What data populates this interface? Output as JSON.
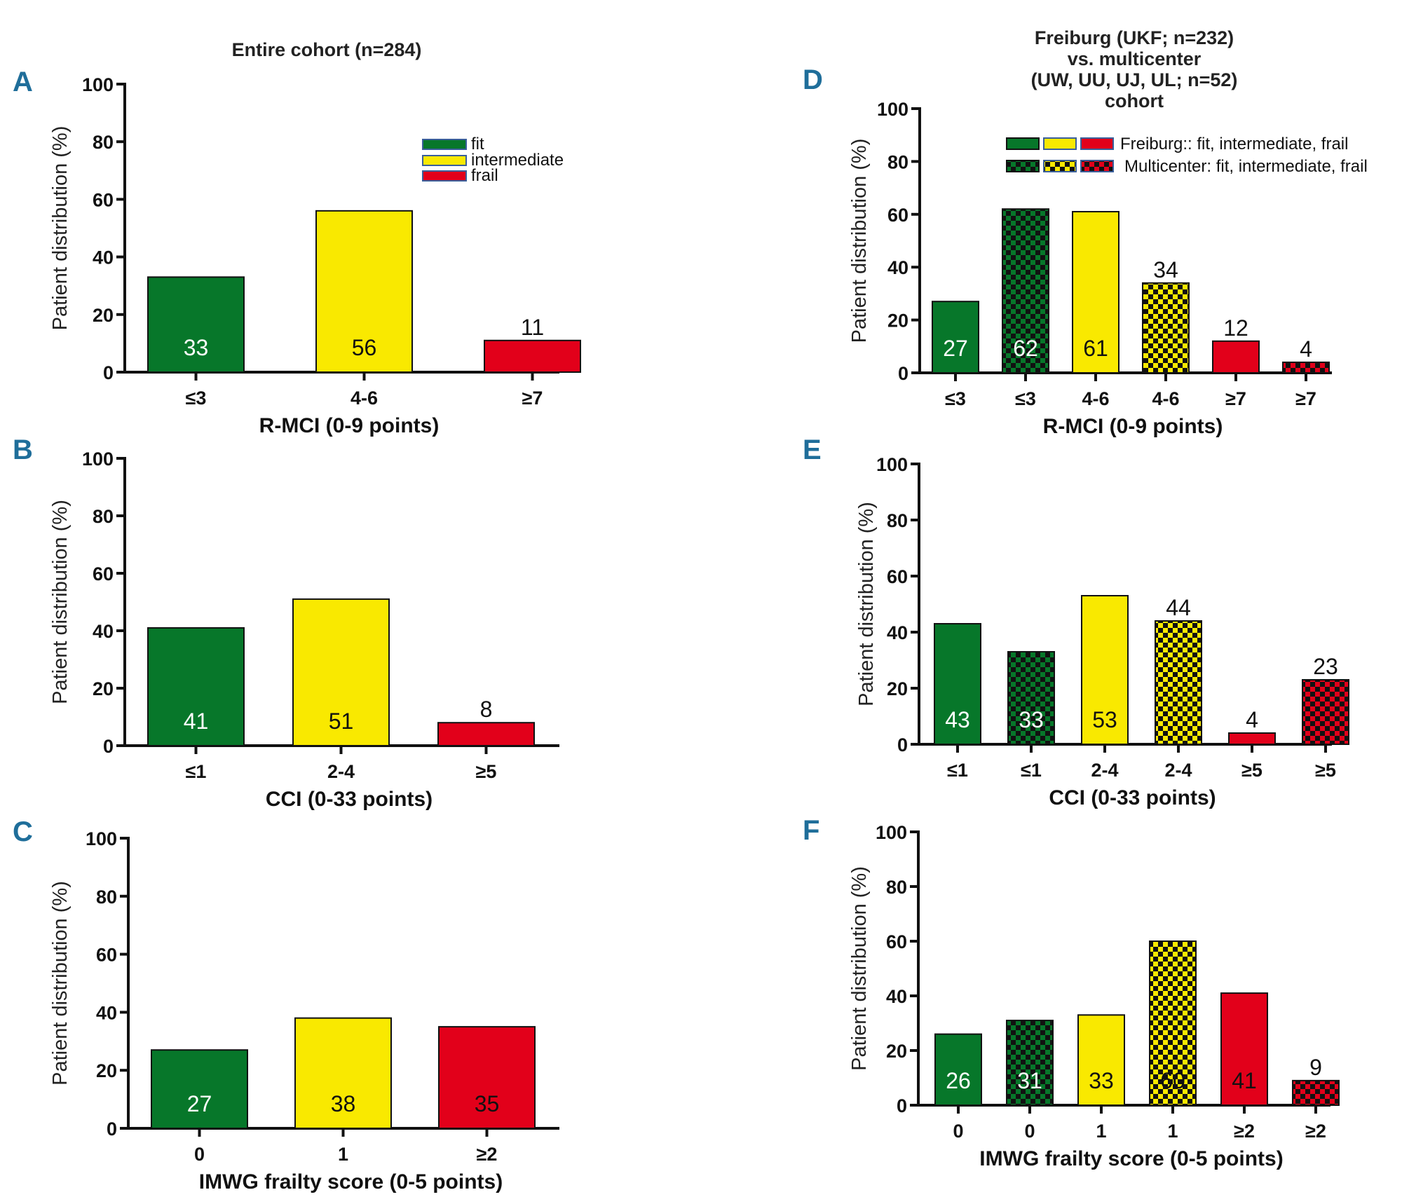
{
  "colors": {
    "fit": "#07772a",
    "intermediate": "#f9e900",
    "frail": "#e2001a",
    "pattern_dark": "#111111",
    "panel_letter": "#1f6e9a"
  },
  "left_title": "Entire cohort (n=284)",
  "right_title": [
    "Freiburg (UKF; n=232)",
    "vs. multicenter",
    "(UW, UU, UJ, UL; n=52)",
    "cohort"
  ],
  "legend_left": [
    {
      "label": "fit",
      "class": "fit"
    },
    {
      "label": "intermediate",
      "class": "intermediate"
    },
    {
      "label": "frail",
      "class": "frail"
    }
  ],
  "legend_right": [
    {
      "label": "Freiburg:: fit, intermediate, frail",
      "pattern": false
    },
    {
      "label": "Multicenter: fit, intermediate, frail",
      "pattern": true
    }
  ],
  "chart_data": [
    {
      "panel": "A",
      "type": "bar",
      "title": "Entire cohort (n=284)",
      "xlabel": "R-MCI (0-9 points)",
      "ylabel": "Patient distribution (%)",
      "ylim": [
        0,
        100
      ],
      "yticks": [
        0,
        20,
        40,
        60,
        80,
        100
      ],
      "categories": [
        "≤3",
        "4-6",
        "≥7"
      ],
      "values": [
        33,
        56,
        11
      ],
      "classes": [
        "fit",
        "intermediate",
        "frail"
      ],
      "patterned": [
        false,
        false,
        false
      ],
      "legend": [
        "fit",
        "intermediate",
        "frail"
      ]
    },
    {
      "panel": "B",
      "type": "bar",
      "xlabel": "CCI (0-33 points)",
      "ylabel": "Patient distribution (%)",
      "ylim": [
        0,
        100
      ],
      "yticks": [
        0,
        20,
        40,
        60,
        80,
        100
      ],
      "categories": [
        "≤1",
        "2-4",
        "≥5"
      ],
      "values": [
        41,
        51,
        8
      ],
      "classes": [
        "fit",
        "intermediate",
        "frail"
      ],
      "patterned": [
        false,
        false,
        false
      ]
    },
    {
      "panel": "C",
      "type": "bar",
      "xlabel": "IMWG frailty score (0-5 points)",
      "ylabel": "Patient distribution (%)",
      "ylim": [
        0,
        100
      ],
      "yticks": [
        0,
        20,
        40,
        60,
        80,
        100
      ],
      "categories": [
        "0",
        "1",
        "≥2"
      ],
      "values": [
        27,
        38,
        35
      ],
      "classes": [
        "fit",
        "intermediate",
        "frail"
      ],
      "patterned": [
        false,
        false,
        false
      ]
    },
    {
      "panel": "D",
      "type": "bar",
      "title": "Freiburg (UKF; n=232) vs. multicenter (UW, UU, UJ, UL; n=52) cohort",
      "xlabel": "R-MCI (0-9 points)",
      "ylabel": "Patient distribution (%)",
      "ylim": [
        0,
        100
      ],
      "yticks": [
        0,
        20,
        40,
        60,
        80,
        100
      ],
      "categories": [
        "≤3",
        "≤3",
        "4-6",
        "4-6",
        "≥7",
        "≥7"
      ],
      "values": [
        27,
        62,
        61,
        34,
        12,
        4
      ],
      "classes": [
        "fit",
        "fit",
        "intermediate",
        "intermediate",
        "frail",
        "frail"
      ],
      "patterned": [
        false,
        true,
        false,
        true,
        false,
        true
      ],
      "series_names": [
        "Freiburg",
        "Multicenter",
        "Freiburg",
        "Multicenter",
        "Freiburg",
        "Multicenter"
      ],
      "legend": [
        "Freiburg:: fit, intermediate, frail",
        "Multicenter: fit, intermediate, frail"
      ]
    },
    {
      "panel": "E",
      "type": "bar",
      "xlabel": "CCI (0-33 points)",
      "ylabel": "Patient distribution (%)",
      "ylim": [
        0,
        100
      ],
      "yticks": [
        0,
        20,
        40,
        60,
        80,
        100
      ],
      "categories": [
        "≤1",
        "≤1",
        "2-4",
        "2-4",
        "≥5",
        "≥5"
      ],
      "values": [
        43,
        33,
        53,
        44,
        4,
        23
      ],
      "classes": [
        "fit",
        "fit",
        "intermediate",
        "intermediate",
        "frail",
        "frail"
      ],
      "patterned": [
        false,
        true,
        false,
        true,
        false,
        true
      ],
      "series_names": [
        "Freiburg",
        "Multicenter",
        "Freiburg",
        "Multicenter",
        "Freiburg",
        "Multicenter"
      ]
    },
    {
      "panel": "F",
      "type": "bar",
      "xlabel": "IMWG frailty score (0-5 points)",
      "ylabel": "Patient distribution (%)",
      "ylim": [
        0,
        100
      ],
      "yticks": [
        0,
        20,
        40,
        60,
        80,
        100
      ],
      "categories": [
        "0",
        "0",
        "1",
        "1",
        "≥2",
        "≥2"
      ],
      "values": [
        26,
        31,
        33,
        60,
        41,
        9
      ],
      "classes": [
        "fit",
        "fit",
        "intermediate",
        "intermediate",
        "frail",
        "frail"
      ],
      "patterned": [
        false,
        true,
        false,
        true,
        false,
        true
      ],
      "series_names": [
        "Freiburg",
        "Multicenter",
        "Freiburg",
        "Multicenter",
        "Freiburg",
        "Multicenter"
      ]
    }
  ]
}
